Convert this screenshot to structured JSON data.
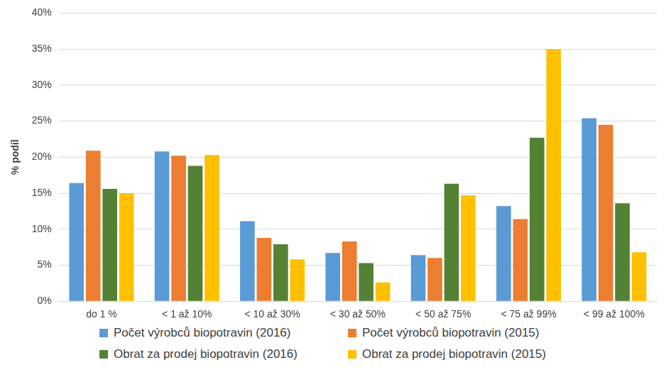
{
  "chart_data": {
    "type": "bar",
    "y_label": "% podíl",
    "categories": [
      "do 1 %",
      "< 1 až 10%",
      "< 10 až 30%",
      "< 30 až 50%",
      "< 50 až 75%",
      "< 75 až 99%",
      "< 99 až 100%"
    ],
    "series": [
      {
        "name": "Počet výrobců biopotravin (2016)",
        "color": "#5b9bd5",
        "values": [
          16.4,
          20.8,
          11.1,
          6.7,
          6.4,
          13.2,
          25.4
        ]
      },
      {
        "name": "Počet výrobců biopotravin (2015)",
        "color": "#ed7d31",
        "values": [
          20.9,
          20.2,
          8.8,
          8.3,
          6.0,
          11.4,
          24.5
        ]
      },
      {
        "name": "Obrat za prodej biopotravin (2016)",
        "color": "#548235",
        "values": [
          15.6,
          18.8,
          7.9,
          5.3,
          16.3,
          22.7,
          13.6
        ]
      },
      {
        "name": "Obrat za prodej biopotravin (2015)",
        "color": "#ffc000",
        "values": [
          15.0,
          20.3,
          5.8,
          2.6,
          14.7,
          35.0,
          6.8
        ]
      }
    ],
    "ylim": [
      0,
      40
    ],
    "yticks": [
      {
        "value": 0,
        "label": "0%"
      },
      {
        "value": 5,
        "label": "5%"
      },
      {
        "value": 10,
        "label": "10%"
      },
      {
        "value": 15,
        "label": "15%"
      },
      {
        "value": 20,
        "label": "20%"
      },
      {
        "value": 25,
        "label": "25%"
      },
      {
        "value": 30,
        "label": "30%"
      },
      {
        "value": 35,
        "label": "35%"
      },
      {
        "value": 40,
        "label": "40%"
      }
    ],
    "grid": true,
    "legend": "bottom"
  }
}
